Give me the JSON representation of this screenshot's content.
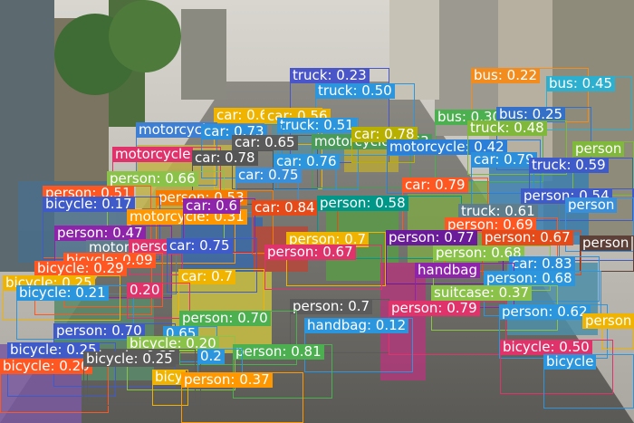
{
  "image": {
    "description_icon": "street-scene-photo",
    "colors": {
      "person": "#e8a000",
      "car": "#3a8fdb",
      "truck": "#3f5bc9",
      "bus": "#e88a1a",
      "motorcycle": "#e0336b",
      "bicycle": "#f56a2a",
      "handbag": "#2e7fe0",
      "suitcase": "#7fb83a"
    }
  },
  "detections": [
    {
      "text": "truck: 0.23",
      "color": "#4a56c8"
    },
    {
      "text": "truck: 0.50",
      "color": "#2b96de"
    },
    {
      "text": "bus: 0.22",
      "color": "#f28c1e"
    },
    {
      "text": "bus: 0.45",
      "color": "#2db0cf"
    },
    {
      "text": "car: 0.62",
      "color": "#f0b400"
    },
    {
      "text": "car: 0.56",
      "color": "#e8b000"
    },
    {
      "text": "truck: 0.51",
      "color": "#2b96de"
    },
    {
      "text": "bus: 0.30",
      "color": "#4caf50"
    },
    {
      "text": "bus: 0.25",
      "color": "#3470c8"
    },
    {
      "text": "motorcycle",
      "color": "#3e7fd4"
    },
    {
      "text": "car: 0.73",
      "color": "#2b8fdb"
    },
    {
      "text": "car: 0.65",
      "color": "#5b5b5b"
    },
    {
      "text": "motorcycle: 0.63",
      "color": "#4a9a5a"
    },
    {
      "text": "car: 0.78",
      "color": "#b7b000"
    },
    {
      "text": "motorcycle: 0.42",
      "color": "#2b7fd9"
    },
    {
      "text": "truck: 0.48",
      "color": "#7fb83a"
    },
    {
      "text": "person",
      "color": "#7fb83a"
    },
    {
      "text": "motorcycle",
      "color": "#e0336b"
    },
    {
      "text": "car: 0.78",
      "color": "#555555"
    },
    {
      "text": "car: 0.76",
      "color": "#2b96de"
    },
    {
      "text": "car: 0.79",
      "color": "#2b8fdb"
    },
    {
      "text": "truck: 0.59",
      "color": "#3f5bc9"
    },
    {
      "text": "person: 0.66",
      "color": "#8bc34a"
    },
    {
      "text": "car: 0.75",
      "color": "#3a8fdb"
    },
    {
      "text": "person: 0.51",
      "color": "#ff5722"
    },
    {
      "text": "person: 0.53",
      "color": "#f57c00"
    },
    {
      "text": "car: 0.79",
      "color": "#ff5722"
    },
    {
      "text": "person: 0.54",
      "color": "#3f5bc9"
    },
    {
      "text": "bicycle: 0.17",
      "color": "#3f5bc9"
    },
    {
      "text": "motorcycle: 0.31",
      "color": "#ff9800"
    },
    {
      "text": "car: 0.6",
      "color": "#8e24aa"
    },
    {
      "text": "car: 0.84",
      "color": "#e64a19"
    },
    {
      "text": "person: 0.58",
      "color": "#009688"
    },
    {
      "text": "truck: 0.61",
      "color": "#607d8b"
    },
    {
      "text": "person",
      "color": "#3a8fdb"
    },
    {
      "text": "person: 0.69",
      "color": "#ff5722"
    },
    {
      "text": "person: 0.47",
      "color": "#8e24aa"
    },
    {
      "text": "person: 0.7",
      "color": "#f0b400"
    },
    {
      "text": "person: 0.77",
      "color": "#6a1b9a"
    },
    {
      "text": "person: 0.67",
      "color": "#e64a19"
    },
    {
      "text": "person",
      "color": "#5d4037"
    },
    {
      "text": "motorcycle",
      "color": "#607d8b"
    },
    {
      "text": "person",
      "color": "#e0336b"
    },
    {
      "text": "car: 0.75",
      "color": "#3f5bc9"
    },
    {
      "text": "person: 0.67",
      "color": "#e0336b"
    },
    {
      "text": "person: 0.68",
      "color": "#8bc34a"
    },
    {
      "text": "bicycle: 0.09",
      "color": "#ff5722"
    },
    {
      "text": "car: 0.83",
      "color": "#2b8fdb"
    },
    {
      "text": "bicycle: 0.29",
      "color": "#ff5722"
    },
    {
      "text": "handbag",
      "color": "#8e24aa"
    },
    {
      "text": "person: 0.68",
      "color": "#2b96de"
    },
    {
      "text": "car: 0.7",
      "color": "#f0b400"
    },
    {
      "text": "bicycle: 0.25",
      "color": "#f0b400"
    },
    {
      "text": "bicycle: 0.21",
      "color": "#2b96de"
    },
    {
      "text": "0.20",
      "color": "#e0336b"
    },
    {
      "text": "suitcase: 0.37",
      "color": "#8bc34a"
    },
    {
      "text": "person: 0.7",
      "color": "#5b5b5b"
    },
    {
      "text": "person: 0.79",
      "color": "#e0336b"
    },
    {
      "text": "person: 0.62",
      "color": "#2b96de"
    },
    {
      "text": "person: 0.70",
      "color": "#4caf50"
    },
    {
      "text": "handbag: 0.12",
      "color": "#2b96de"
    },
    {
      "text": "person: 0.70",
      "color": "#3f5bc9"
    },
    {
      "text": "0.65",
      "color": "#2b96de"
    },
    {
      "text": "bicycle: 0.20",
      "color": "#8bc34a"
    },
    {
      "text": "person",
      "color": "#f0b400"
    },
    {
      "text": "bicycle: 0.25",
      "color": "#5b5b5b"
    },
    {
      "text": "person: 0.81",
      "color": "#4caf50"
    },
    {
      "text": "bicycle: 0.50",
      "color": "#e0336b"
    },
    {
      "text": "bicycle",
      "color": "#2b96de"
    },
    {
      "text": "bicycle: 0.25",
      "color": "#3f5bc9"
    },
    {
      "text": "bicycle: 0.20",
      "color": "#ff5722"
    },
    {
      "text": "bicycle: 0.25",
      "color": "#5b5b5b"
    },
    {
      "text": "0.2",
      "color": "#2b96de"
    },
    {
      "text": "bicy",
      "color": "#f0b400"
    },
    {
      "text": "person: 0.37",
      "color": "#ff9800"
    }
  ]
}
